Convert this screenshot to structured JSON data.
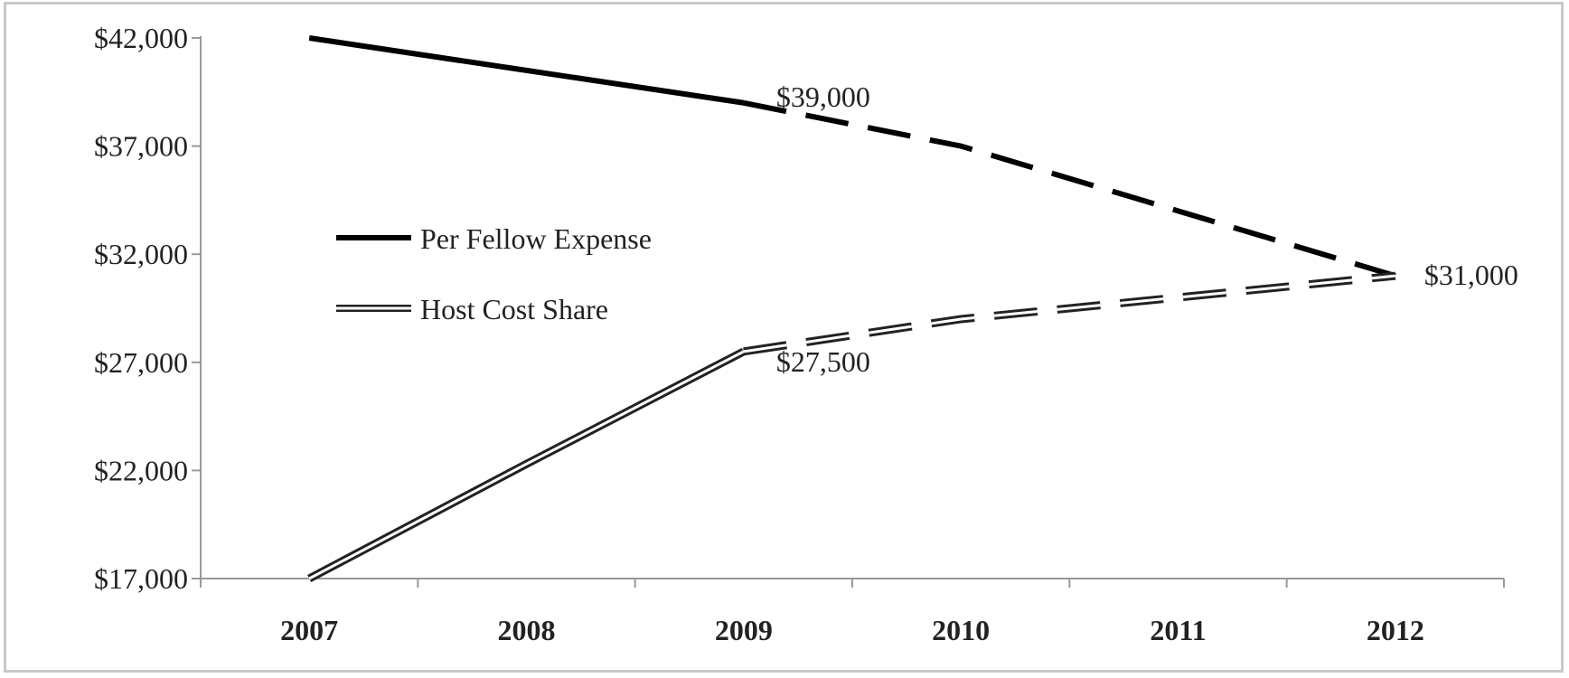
{
  "chart_data": {
    "type": "line",
    "title": "",
    "xlabel": "",
    "ylabel": "",
    "categories": [
      "2007",
      "2008",
      "2009",
      "2010",
      "2011",
      "2012"
    ],
    "y_ticks": [
      "$42,000",
      "$37,000",
      "$32,000",
      "$27,000",
      "$22,000",
      "$17,000"
    ],
    "ylim": [
      17000,
      42000
    ],
    "grid": false,
    "legend_position": "center-left",
    "series": [
      {
        "name": "Per Fellow Expense",
        "style": "solid-black",
        "actual": [
          42000,
          40500,
          39000
        ],
        "projected": [
          39000,
          37000,
          34000,
          31000
        ]
      },
      {
        "name": "Host Cost Share",
        "style": "double-line",
        "actual": [
          17000,
          22300,
          27500
        ],
        "projected": [
          27500,
          29000,
          30000,
          31000
        ]
      }
    ],
    "annotations": [
      {
        "text": "$39,000",
        "x": "2009",
        "y": 39000
      },
      {
        "text": "$27,500",
        "x": "2009",
        "y": 27500
      },
      {
        "text": "$31,000",
        "x": "2012",
        "y": 31000
      }
    ]
  }
}
